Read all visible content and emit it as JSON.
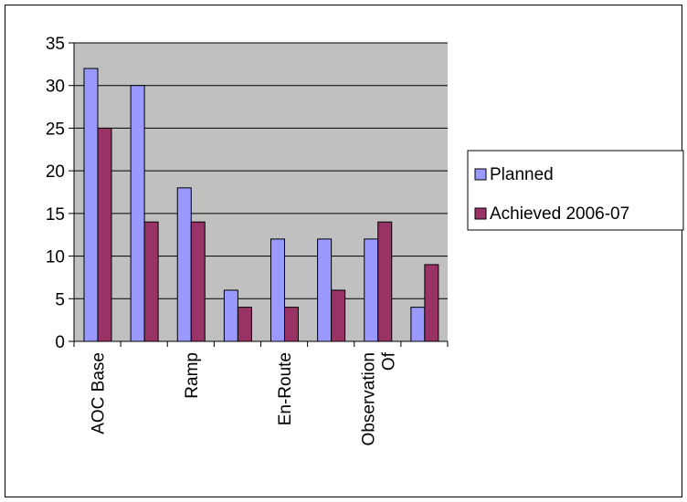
{
  "chart_data": {
    "type": "bar",
    "categories": [
      "AOC Base",
      "",
      "Ramp",
      "",
      "En-Route",
      "",
      "Observation Of",
      ""
    ],
    "series": [
      {
        "name": "Planned",
        "values": [
          32,
          30,
          18,
          6,
          12,
          12,
          12,
          4
        ],
        "color": "#9999ff"
      },
      {
        "name": "Achieved 2006-07",
        "values": [
          25,
          14,
          14,
          4,
          4,
          6,
          14,
          9
        ],
        "color": "#993366"
      }
    ],
    "ylim": [
      0,
      35
    ],
    "yticks": [
      0,
      5,
      10,
      15,
      20,
      25,
      30,
      35
    ],
    "grid": true,
    "plot_background": "#c0c0c0",
    "legend_position": "right"
  }
}
